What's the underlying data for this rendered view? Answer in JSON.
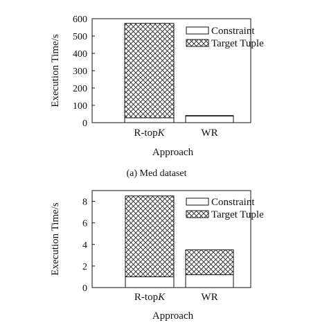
{
  "chart_data": [
    {
      "type": "bar",
      "stacked": true,
      "ylabel": "Execution Time/s",
      "xlabel": "Approach",
      "caption": "(a)  Med dataset",
      "categories": [
        "R-top",
        "WR"
      ],
      "category_suffix_italic": [
        "K",
        ""
      ],
      "yticks": [
        0,
        100,
        200,
        300,
        400,
        500,
        600
      ],
      "ylim": [
        0,
        600
      ],
      "series": [
        {
          "name": "Constraint",
          "values": [
            28,
            38
          ],
          "pattern": "none"
        },
        {
          "name": "Target Tuple",
          "values": [
            545,
            3
          ],
          "pattern": "crosshatch"
        }
      ],
      "legend": "top-right",
      "grid": false
    },
    {
      "type": "bar",
      "stacked": true,
      "ylabel": "Execution Time/s",
      "xlabel": "Approach",
      "caption": "",
      "categories": [
        "R-top",
        "WR"
      ],
      "category_suffix_italic": [
        "K",
        ""
      ],
      "yticks": [
        0,
        2,
        4,
        6,
        8
      ],
      "ylim": [
        0,
        9
      ],
      "series": [
        {
          "name": "Constraint",
          "values": [
            1.0,
            1.2
          ],
          "pattern": "none"
        },
        {
          "name": "Target Tuple",
          "values": [
            7.5,
            2.3
          ],
          "pattern": "crosshatch"
        }
      ],
      "legend": "top-right",
      "grid": false
    }
  ]
}
